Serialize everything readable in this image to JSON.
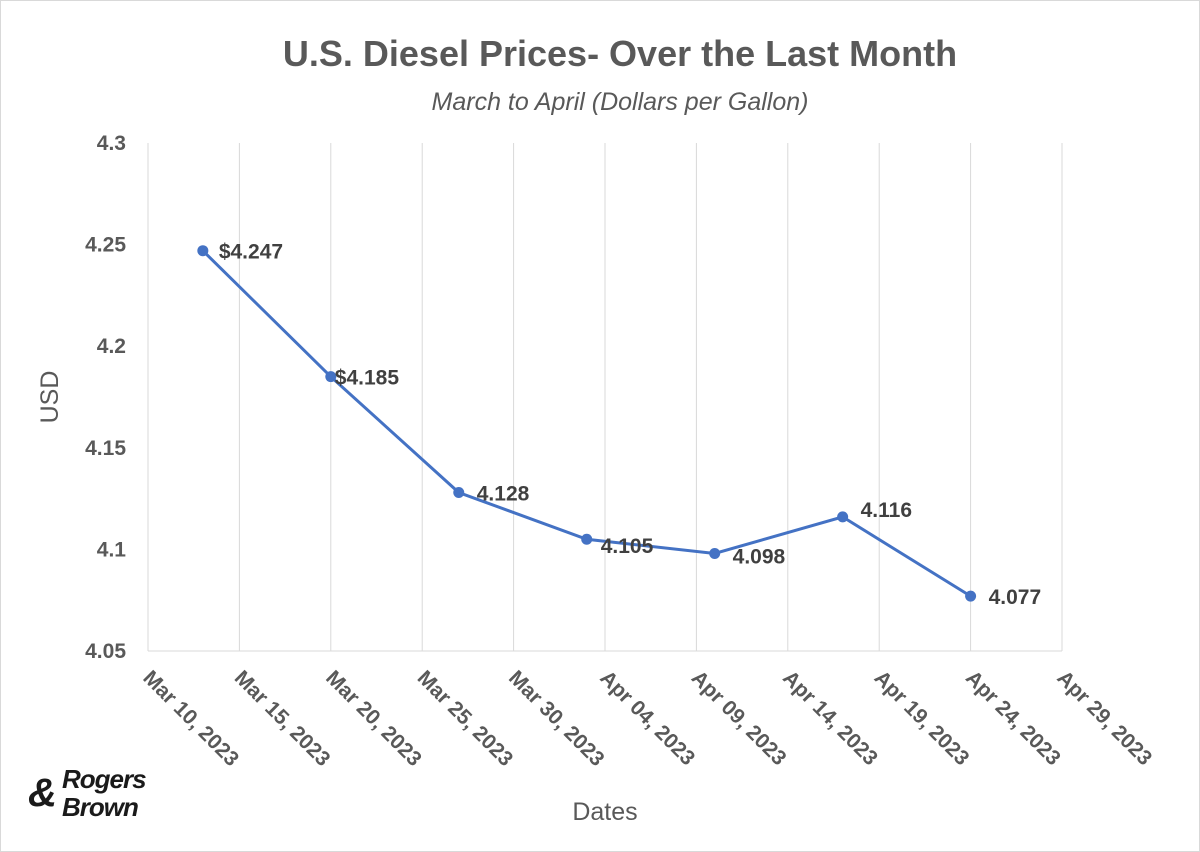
{
  "chart_data": {
    "type": "line",
    "title": "U.S. Diesel Prices- Over the Last Month",
    "subtitle": "March to April (Dollars per Gallon)",
    "xlabel": "Dates",
    "ylabel": "USD",
    "ylim": [
      4.05,
      4.3
    ],
    "yticks": [
      "4.05",
      "4.1",
      "4.15",
      "4.2",
      "4.25",
      "4.3"
    ],
    "xlim": [
      "2023-03-10",
      "2023-04-29"
    ],
    "xticks": [
      "Mar 10, 2023",
      "Mar 15, 2023",
      "Mar 20, 2023",
      "Mar 25, 2023",
      "Mar 30, 2023",
      "Apr 04, 2023",
      "Apr 09, 2023",
      "Apr 14, 2023",
      "Apr 19, 2023",
      "Apr 24, 2023",
      "Apr 29, 2023"
    ],
    "grid": "vertical",
    "line_color": "#4472C4",
    "points": [
      {
        "x": "2023-03-13",
        "y": 4.247,
        "label": "$4.247"
      },
      {
        "x": "2023-03-20",
        "y": 4.185,
        "label": "$4.185"
      },
      {
        "x": "2023-03-27",
        "y": 4.128,
        "label": "4.128"
      },
      {
        "x": "2023-04-03",
        "y": 4.105,
        "label": "4.105"
      },
      {
        "x": "2023-04-10",
        "y": 4.098,
        "label": "4.098"
      },
      {
        "x": "2023-04-17",
        "y": 4.116,
        "label": "4.116"
      },
      {
        "x": "2023-04-24",
        "y": 4.077,
        "label": "4.077"
      }
    ]
  },
  "logo": {
    "line1": "Rogers",
    "line2": "Brown"
  }
}
